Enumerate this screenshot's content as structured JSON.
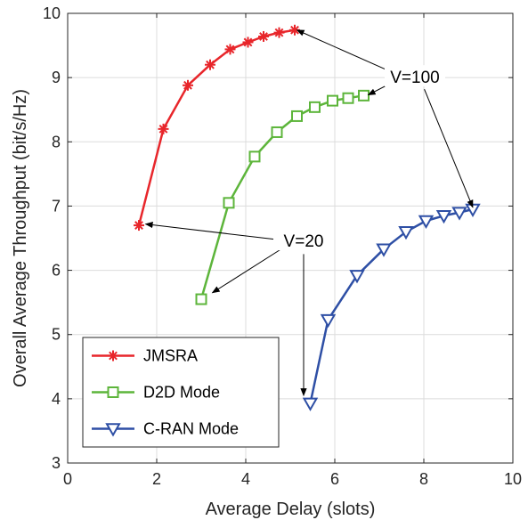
{
  "chart_data": {
    "type": "line",
    "xlabel": "Average Delay (slots)",
    "ylabel": "Overall Average Throughput (bit/s/Hz)",
    "xlim": [
      0,
      10
    ],
    "ylim": [
      3,
      10
    ],
    "xticks": [
      0,
      2,
      4,
      6,
      8,
      10
    ],
    "yticks": [
      3,
      4,
      5,
      6,
      7,
      8,
      9,
      10
    ],
    "grid": true,
    "legend_position": "bottom-left",
    "series": [
      {
        "name": "JMSRA",
        "color": "#e8262b",
        "marker": "asterisk",
        "x": [
          1.6,
          2.15,
          2.7,
          3.2,
          3.65,
          4.05,
          4.4,
          4.75,
          5.1
        ],
        "y": [
          6.7,
          8.2,
          8.88,
          9.2,
          9.44,
          9.55,
          9.64,
          9.7,
          9.74
        ]
      },
      {
        "name": "D2D Mode",
        "color": "#5db53b",
        "marker": "square",
        "x": [
          3.0,
          3.62,
          4.2,
          4.7,
          5.15,
          5.55,
          5.95,
          6.3,
          6.65
        ],
        "y": [
          5.55,
          7.05,
          7.77,
          8.15,
          8.4,
          8.54,
          8.64,
          8.68,
          8.72
        ]
      },
      {
        "name": "C-RAN Mode",
        "color": "#2e4fa5",
        "marker": "triangle-down",
        "x": [
          5.45,
          5.85,
          6.5,
          7.1,
          7.6,
          8.05,
          8.45,
          8.8,
          9.1
        ],
        "y": [
          3.93,
          5.23,
          5.92,
          6.33,
          6.6,
          6.77,
          6.85,
          6.9,
          6.95
        ]
      }
    ],
    "annotations": [
      {
        "text": "V=100",
        "text_x": 7.8,
        "text_y": 9.0,
        "targets": [
          [
            5.15,
            9.74
          ],
          [
            6.75,
            8.73
          ],
          [
            9.1,
            6.98
          ]
        ]
      },
      {
        "text": "V=20",
        "text_x": 5.3,
        "text_y": 6.45,
        "targets": [
          [
            1.75,
            6.72
          ],
          [
            3.25,
            5.65
          ],
          [
            5.3,
            4.05
          ]
        ]
      }
    ]
  }
}
